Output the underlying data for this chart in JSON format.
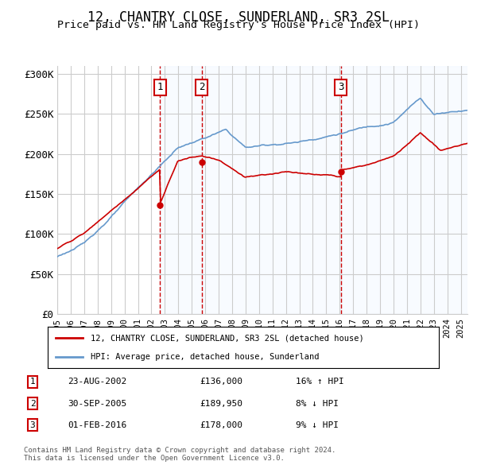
{
  "title": "12, CHANTRY CLOSE, SUNDERLAND, SR3 2SL",
  "subtitle": "Price paid vs. HM Land Registry's House Price Index (HPI)",
  "ylabel_ticks": [
    "£0",
    "£50K",
    "£100K",
    "£150K",
    "£200K",
    "£250K",
    "£300K"
  ],
  "ytick_values": [
    0,
    50000,
    100000,
    150000,
    200000,
    250000,
    300000
  ],
  "ylim": [
    0,
    310000
  ],
  "xlim_start": 1995.0,
  "xlim_end": 2025.5,
  "sale_date_years": [
    2002.645,
    2005.748,
    2016.085
  ],
  "sale_prices": [
    136000,
    189950,
    178000
  ],
  "sale_labels": [
    "1",
    "2",
    "3"
  ],
  "legend_line1": "12, CHANTRY CLOSE, SUNDERLAND, SR3 2SL (detached house)",
  "legend_line2": "HPI: Average price, detached house, Sunderland",
  "table_rows": [
    [
      "1",
      "23-AUG-2002",
      "£136,000",
      "16% ↑ HPI"
    ],
    [
      "2",
      "30-SEP-2005",
      "£189,950",
      "8% ↓ HPI"
    ],
    [
      "3",
      "01-FEB-2016",
      "£178,000",
      "9% ↓ HPI"
    ]
  ],
  "footer": "Contains HM Land Registry data © Crown copyright and database right 2024.\nThis data is licensed under the Open Government Licence v3.0.",
  "hpi_color": "#6699cc",
  "sale_line_color": "#cc0000",
  "marker_color": "#cc0000",
  "vline_color": "#cc0000",
  "shade_color": "#ddeeff",
  "background_color": "#ffffff",
  "grid_color": "#cccccc"
}
